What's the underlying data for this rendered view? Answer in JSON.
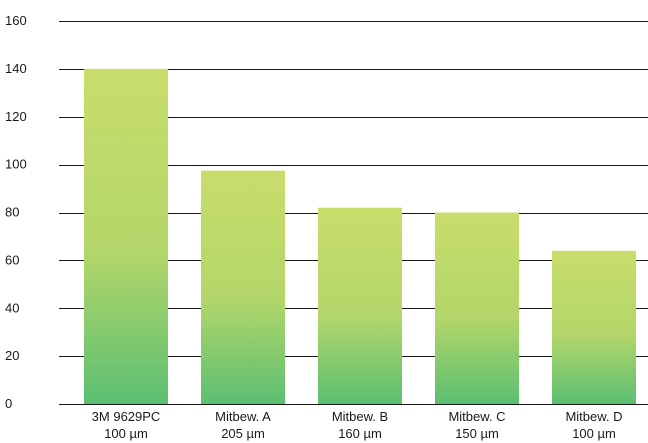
{
  "chart_data": {
    "type": "bar",
    "title": "",
    "xlabel": "",
    "ylabel": "",
    "categories": [
      [
        "3M 9629PC",
        "100 µm"
      ],
      [
        "Mitbew. A",
        "205 µm"
      ],
      [
        "Mitbew. B",
        "160 µm"
      ],
      [
        "Mitbew. C",
        "150 µm"
      ],
      [
        "Mitbew. D",
        "100 µm"
      ]
    ],
    "values": [
      140,
      97.5,
      82,
      80,
      64
    ],
    "ylim": [
      0,
      160
    ],
    "yticks": [
      0,
      20,
      40,
      60,
      80,
      100,
      120,
      140,
      160
    ],
    "grid": true,
    "legend": "none",
    "colors": {
      "bar_top": "#c8dd6b",
      "bar_bottom": "#5bbf72",
      "grid": "#1a1a1a",
      "text": "#1a1a1a"
    }
  }
}
